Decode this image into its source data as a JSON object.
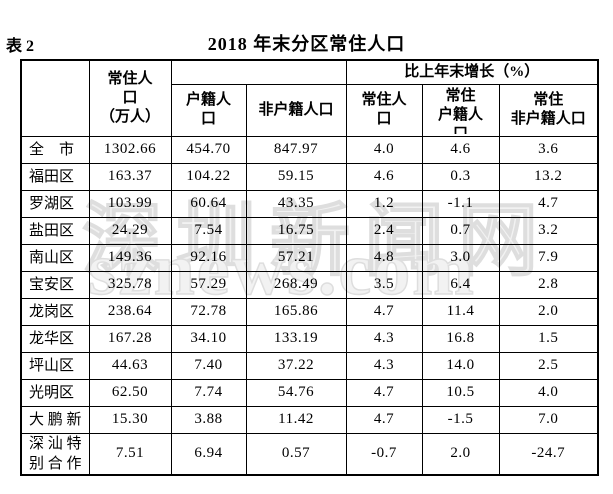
{
  "page": {
    "table_label": "表 2",
    "title": "2018 年末分区常住人口"
  },
  "watermark": {
    "line1": "深圳新闻网",
    "line2": "sznews.com"
  },
  "table": {
    "header": {
      "corner": "",
      "resident_total": "常住人\n口\n（万人）",
      "pop_group_blank": "",
      "growth_group": "比上年末增长（%）",
      "hukou": "户籍人\n口",
      "non_hukou": "非户籍人口",
      "g_resident": "常住人\n口",
      "g_hukou": "常住\n户籍人\n口",
      "g_non_hukou": "常住\n非户籍人口"
    },
    "columns_order": [
      "district",
      "resident",
      "hukou",
      "non_hukou",
      "g_resident",
      "g_hukou",
      "g_non_hukou"
    ],
    "rows": [
      {
        "district": "全　市",
        "resident": "1302.66",
        "hukou": "454.70",
        "non_hukou": "847.97",
        "g_resident": "4.0",
        "g_hukou": "4.6",
        "g_non_hukou": "3.6"
      },
      {
        "district": "福田区",
        "resident": "163.37",
        "hukou": "104.22",
        "non_hukou": "59.15",
        "g_resident": "4.6",
        "g_hukou": "0.3",
        "g_non_hukou": "13.2"
      },
      {
        "district": "罗湖区",
        "resident": "103.99",
        "hukou": "60.64",
        "non_hukou": "43.35",
        "g_resident": "1.2",
        "g_hukou": "-1.1",
        "g_non_hukou": "4.7"
      },
      {
        "district": "盐田区",
        "resident": "24.29",
        "hukou": "7.54",
        "non_hukou": "16.75",
        "g_resident": "2.4",
        "g_hukou": "0.7",
        "g_non_hukou": "3.2"
      },
      {
        "district": "南山区",
        "resident": "149.36",
        "hukou": "92.16",
        "non_hukou": "57.21",
        "g_resident": "4.8",
        "g_hukou": "3.0",
        "g_non_hukou": "7.9"
      },
      {
        "district": "宝安区",
        "resident": "325.78",
        "hukou": "57.29",
        "non_hukou": "268.49",
        "g_resident": "3.5",
        "g_hukou": "6.4",
        "g_non_hukou": "2.8"
      },
      {
        "district": "龙岗区",
        "resident": "238.64",
        "hukou": "72.78",
        "non_hukou": "165.86",
        "g_resident": "4.7",
        "g_hukou": "11.4",
        "g_non_hukou": "2.0"
      },
      {
        "district": "龙华区",
        "resident": "167.28",
        "hukou": "34.10",
        "non_hukou": "133.19",
        "g_resident": "4.3",
        "g_hukou": "16.8",
        "g_non_hukou": "1.5"
      },
      {
        "district": "坪山区",
        "resident": "44.63",
        "hukou": "7.40",
        "non_hukou": "37.22",
        "g_resident": "4.3",
        "g_hukou": "14.0",
        "g_non_hukou": "2.5"
      },
      {
        "district": "光明区",
        "resident": "62.50",
        "hukou": "7.74",
        "non_hukou": "54.76",
        "g_resident": "4.7",
        "g_hukou": "10.5",
        "g_non_hukou": "4.0"
      },
      {
        "district": "大 鹏 新",
        "resident": "15.30",
        "hukou": "3.88",
        "non_hukou": "11.42",
        "g_resident": "4.7",
        "g_hukou": "-1.5",
        "g_non_hukou": "7.0"
      },
      {
        "district": "深 汕 特\n别 合 作",
        "resident": "7.51",
        "hukou": "6.94",
        "non_hukou": "0.57",
        "g_resident": "-0.7",
        "g_hukou": "2.0",
        "g_non_hukou": "-24.7"
      }
    ]
  }
}
